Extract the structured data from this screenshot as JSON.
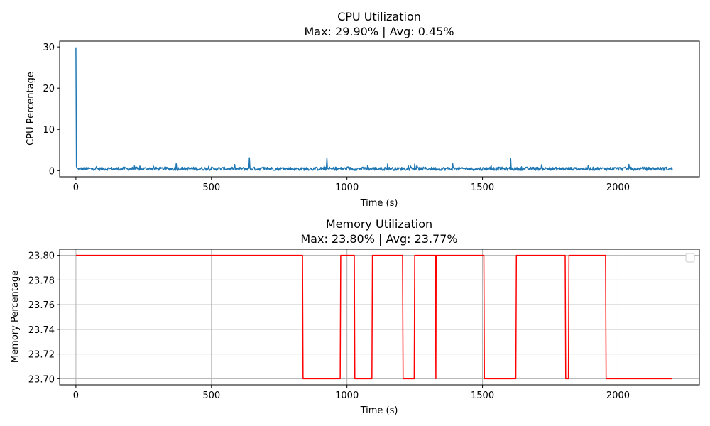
{
  "chart_data": [
    {
      "type": "line",
      "title": "CPU Utilization",
      "subtitle": "Max: 29.90% | Avg: 0.45%",
      "xlabel": "Time (s)",
      "ylabel": "CPU Percentage",
      "xlim": [
        -60,
        2300
      ],
      "ylim": [
        -1.5,
        31.4
      ],
      "xticks": [
        0,
        500,
        1000,
        1500,
        2000
      ],
      "yticks": [
        0,
        10,
        20,
        30
      ],
      "ytick_labels": [
        "0",
        "10",
        "20",
        "30"
      ],
      "grid": false,
      "series": [
        {
          "color": "#1f77b4",
          "sampling_interval_s": 2,
          "x_max": 2200,
          "baseline": 0.45,
          "noise": 0.4,
          "spikes": [
            {
              "x": 0,
              "y": 29.9
            },
            {
              "x": 2,
              "y": 1.0
            },
            {
              "x": 370,
              "y": 1.7
            },
            {
              "x": 640,
              "y": 3.1
            },
            {
              "x": 926,
              "y": 3.0
            },
            {
              "x": 1150,
              "y": 1.6
            },
            {
              "x": 1250,
              "y": 1.6
            },
            {
              "x": 1390,
              "y": 1.7
            },
            {
              "x": 1604,
              "y": 2.9
            },
            {
              "x": 2040,
              "y": 1.5
            }
          ]
        }
      ]
    },
    {
      "type": "line",
      "title": "Memory Utilization",
      "subtitle": "Max: 23.80% | Avg: 23.77%",
      "xlabel": "Time (s)",
      "ylabel": "Memory Percentage",
      "xlim": [
        -60,
        2300
      ],
      "ylim": [
        23.695,
        23.805
      ],
      "xticks": [
        0,
        500,
        1000,
        1500,
        2000
      ],
      "yticks": [
        23.7,
        23.72,
        23.74,
        23.76,
        23.78,
        23.8
      ],
      "ytick_labels": [
        "23.70",
        "23.72",
        "23.74",
        "23.76",
        "23.78",
        "23.80"
      ],
      "grid": true,
      "legend": "top-right",
      "series": [
        {
          "color": "#ff0000",
          "points": [
            [
              0,
              23.8
            ],
            [
              836,
              23.8
            ],
            [
              838,
              23.7
            ],
            [
              975,
              23.7
            ],
            [
              977,
              23.8
            ],
            [
              1027,
              23.8
            ],
            [
              1029,
              23.7
            ],
            [
              1092,
              23.7
            ],
            [
              1094,
              23.8
            ],
            [
              1205,
              23.8
            ],
            [
              1207,
              23.7
            ],
            [
              1248,
              23.7
            ],
            [
              1250,
              23.8
            ],
            [
              1326,
              23.8
            ],
            [
              1328,
              23.7
            ],
            [
              1329,
              23.8
            ],
            [
              1505,
              23.8
            ],
            [
              1507,
              23.7
            ],
            [
              1623,
              23.7
            ],
            [
              1625,
              23.8
            ],
            [
              1805,
              23.8
            ],
            [
              1807,
              23.7
            ],
            [
              1817,
              23.7
            ],
            [
              1819,
              23.8
            ],
            [
              1954,
              23.8
            ],
            [
              1956,
              23.7
            ],
            [
              2200,
              23.7
            ]
          ]
        }
      ]
    }
  ]
}
